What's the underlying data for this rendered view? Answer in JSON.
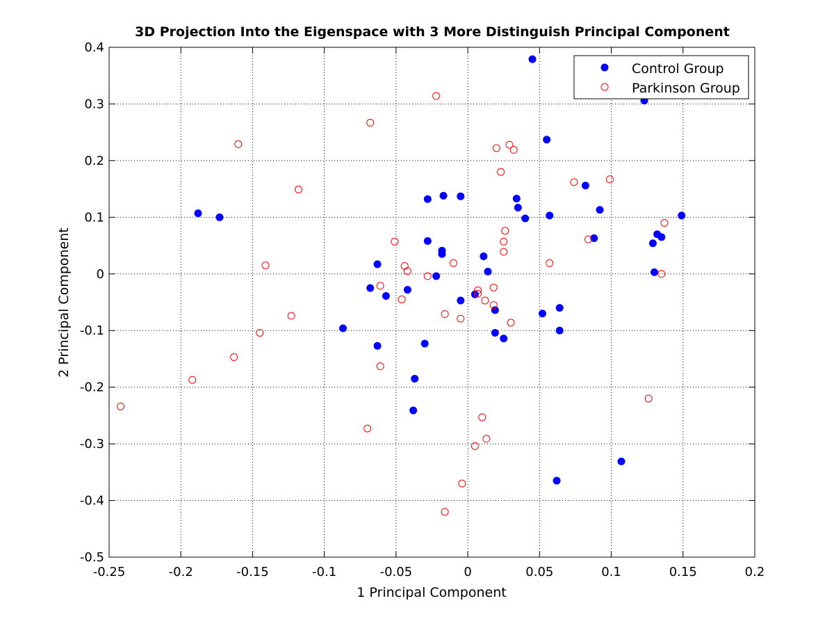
{
  "chart_data": {
    "type": "scatter",
    "title": "3D Projection Into the Eigenspace with 3 More Distinguish Principal Component",
    "xlabel": "1 Principal Component",
    "ylabel": "2 Principal Component",
    "xlim": [
      -0.25,
      0.2
    ],
    "ylim": [
      -0.5,
      0.4
    ],
    "x_ticks": [
      "-0.25",
      "-0.2",
      "-0.15",
      "-0.1",
      "-0.05",
      "0",
      "0.05",
      "0.1",
      "0.15",
      "0.2"
    ],
    "y_ticks": [
      "0.4",
      "0.3",
      "0.2",
      "0.1",
      "0",
      "-0.1",
      "-0.2",
      "-0.3",
      "-0.4",
      "-0.5"
    ],
    "grid": true,
    "legend_position": "top-right",
    "series": [
      {
        "name": "Control Group",
        "color": "#0000ff",
        "marker": "filled-circle",
        "points": [
          [
            0.045,
            0.379
          ],
          [
            0.123,
            0.306
          ],
          [
            0.055,
            0.237
          ],
          [
            -0.188,
            0.107
          ],
          [
            -0.173,
            0.1
          ],
          [
            -0.028,
            0.132
          ],
          [
            -0.017,
            0.138
          ],
          [
            -0.005,
            0.137
          ],
          [
            0.034,
            0.133
          ],
          [
            0.035,
            0.117
          ],
          [
            0.04,
            0.098
          ],
          [
            0.057,
            0.103
          ],
          [
            0.082,
            0.156
          ],
          [
            0.092,
            0.113
          ],
          [
            0.088,
            0.063
          ],
          [
            0.149,
            0.103
          ],
          [
            0.132,
            0.07
          ],
          [
            0.135,
            0.065
          ],
          [
            0.129,
            0.054
          ],
          [
            0.13,
            0.003
          ],
          [
            -0.028,
            0.058
          ],
          [
            -0.018,
            0.041
          ],
          [
            -0.018,
            0.035
          ],
          [
            0.011,
            0.031
          ],
          [
            -0.063,
            0.017
          ],
          [
            0.014,
            0.004
          ],
          [
            -0.022,
            -0.004
          ],
          [
            -0.068,
            -0.025
          ],
          [
            -0.042,
            -0.028
          ],
          [
            -0.057,
            -0.039
          ],
          [
            -0.005,
            -0.047
          ],
          [
            0.005,
            -0.036
          ],
          [
            0.019,
            -0.064
          ],
          [
            0.064,
            -0.06
          ],
          [
            0.052,
            -0.07
          ],
          [
            0.064,
            -0.1
          ],
          [
            -0.087,
            -0.096
          ],
          [
            0.019,
            -0.104
          ],
          [
            0.025,
            -0.114
          ],
          [
            -0.063,
            -0.127
          ],
          [
            -0.03,
            -0.123
          ],
          [
            -0.037,
            -0.185
          ],
          [
            -0.038,
            -0.241
          ],
          [
            0.107,
            -0.331
          ],
          [
            0.062,
            -0.365
          ]
        ]
      },
      {
        "name": "Parkinson Group",
        "color": "#ff0000",
        "marker": "open-circle",
        "points": [
          [
            -0.022,
            0.314
          ],
          [
            -0.068,
            0.267
          ],
          [
            -0.16,
            0.229
          ],
          [
            0.02,
            0.222
          ],
          [
            0.029,
            0.228
          ],
          [
            0.032,
            0.219
          ],
          [
            0.023,
            0.18
          ],
          [
            0.074,
            0.162
          ],
          [
            0.099,
            0.167
          ],
          [
            -0.118,
            0.149
          ],
          [
            0.137,
            0.09
          ],
          [
            0.026,
            0.076
          ],
          [
            0.025,
            0.057
          ],
          [
            0.084,
            0.061
          ],
          [
            -0.051,
            0.057
          ],
          [
            0.025,
            0.039
          ],
          [
            0.057,
            0.019
          ],
          [
            -0.01,
            0.019
          ],
          [
            -0.141,
            0.015
          ],
          [
            -0.044,
            0.014
          ],
          [
            -0.042,
            0.005
          ],
          [
            -0.028,
            -0.004
          ],
          [
            0.135,
            0.0
          ],
          [
            -0.061,
            -0.021
          ],
          [
            0.018,
            -0.024
          ],
          [
            0.007,
            -0.029
          ],
          [
            0.007,
            -0.035
          ],
          [
            -0.046,
            -0.045
          ],
          [
            0.012,
            -0.047
          ],
          [
            0.018,
            -0.055
          ],
          [
            -0.123,
            -0.074
          ],
          [
            -0.016,
            -0.071
          ],
          [
            -0.005,
            -0.079
          ],
          [
            0.03,
            -0.086
          ],
          [
            -0.145,
            -0.104
          ],
          [
            -0.163,
            -0.147
          ],
          [
            -0.061,
            -0.163
          ],
          [
            -0.192,
            -0.187
          ],
          [
            0.126,
            -0.22
          ],
          [
            -0.242,
            -0.234
          ],
          [
            0.01,
            -0.253
          ],
          [
            -0.07,
            -0.273
          ],
          [
            0.013,
            -0.291
          ],
          [
            0.005,
            -0.304
          ],
          [
            -0.004,
            -0.37
          ],
          [
            -0.016,
            -0.42
          ]
        ]
      }
    ]
  }
}
